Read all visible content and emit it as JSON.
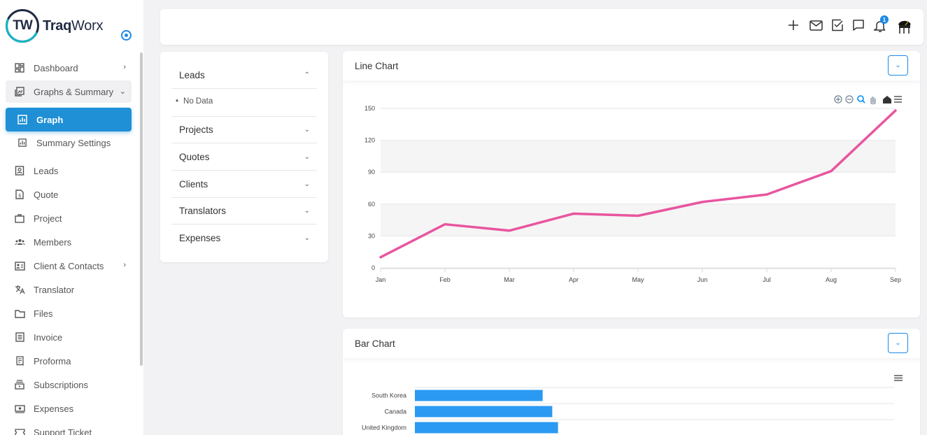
{
  "app": {
    "logo_initials": "TW",
    "logo_name_bold": "Traq",
    "logo_name_rest": "Worx"
  },
  "sidebar": {
    "items": [
      {
        "label": "Dashboard",
        "icon": "dashboard-icon",
        "chevron": "›"
      },
      {
        "label": "Graphs & Summary",
        "icon": "graphs-icon",
        "chevron": "⌄"
      },
      {
        "label": "Graph",
        "icon": "graph-icon"
      },
      {
        "label": "Summary Settings",
        "icon": "summary-icon"
      },
      {
        "label": "Leads",
        "icon": "leads-icon"
      },
      {
        "label": "Quote",
        "icon": "quote-icon"
      },
      {
        "label": "Project",
        "icon": "briefcase-icon"
      },
      {
        "label": "Members",
        "icon": "members-icon"
      },
      {
        "label": "Client & Contacts",
        "icon": "contacts-icon",
        "chevron": "›"
      },
      {
        "label": "Translator",
        "icon": "translate-icon"
      },
      {
        "label": "Files",
        "icon": "folder-icon"
      },
      {
        "label": "Invoice",
        "icon": "invoice-icon"
      },
      {
        "label": "Proforma",
        "icon": "proforma-icon"
      },
      {
        "label": "Subscriptions",
        "icon": "subscriptions-icon"
      },
      {
        "label": "Expenses",
        "icon": "expenses-icon"
      },
      {
        "label": "Support Ticket",
        "icon": "ticket-icon"
      }
    ]
  },
  "topbar": {
    "notification_count": "1"
  },
  "filters": {
    "sections": [
      {
        "label": "Leads",
        "chevron": "⌃"
      },
      {
        "label": "Projects",
        "chevron": "⌄"
      },
      {
        "label": "Quotes",
        "chevron": "⌄"
      },
      {
        "label": "Clients",
        "chevron": "⌄"
      },
      {
        "label": "Translators",
        "chevron": "⌄"
      },
      {
        "label": "Expenses",
        "chevron": "⌄"
      }
    ],
    "leads_empty": "No Data"
  },
  "line_card": {
    "title": "Line Chart",
    "dropdown": "⌄"
  },
  "bar_card": {
    "title": "Bar Chart",
    "dropdown": "⌄"
  },
  "colors": {
    "accent": "#1f8fd6",
    "line": "#e8559f",
    "bar": "#2b9af3"
  },
  "chart_data": [
    {
      "type": "line",
      "categories": [
        "Jan",
        "Feb",
        "Mar",
        "Apr",
        "May",
        "Jun",
        "Jul",
        "Aug",
        "Sep"
      ],
      "values": [
        10,
        41,
        35,
        51,
        49,
        62,
        69,
        91,
        148
      ],
      "y_ticks": [
        0,
        30,
        60,
        90,
        120,
        150
      ],
      "ylim": [
        0,
        150
      ],
      "grid": true,
      "title": "",
      "xlabel": "",
      "ylabel": ""
    },
    {
      "type": "bar",
      "orientation": "horizontal",
      "categories": [
        "South Korea",
        "Canada",
        "United Kingdom"
      ],
      "values": [
        400,
        430,
        448
      ],
      "xlim": [
        0,
        1500
      ],
      "title": "",
      "xlabel": "",
      "ylabel": ""
    }
  ]
}
